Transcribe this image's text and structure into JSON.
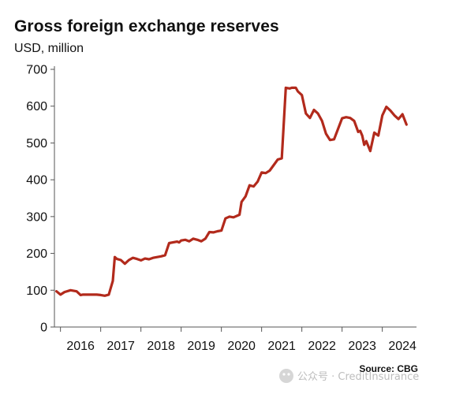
{
  "chart_data": {
    "type": "line",
    "title": "Gross foreign exchange reserves",
    "ylabel": "USD, million",
    "xlabel": "",
    "ylim": [
      0,
      700
    ],
    "yticks": [
      0,
      100,
      200,
      300,
      400,
      500,
      600,
      700
    ],
    "xlim": [
      2015.85,
      2024.85
    ],
    "xtick_labels": [
      "2016",
      "2017",
      "2018",
      "2019",
      "2020",
      "2021",
      "2022",
      "2023",
      "2024"
    ],
    "grid": false,
    "legend": "none",
    "series": [
      {
        "color": "#b22a1c",
        "x": [
          2015.9,
          2016.0,
          2016.1,
          2016.25,
          2016.4,
          2016.5,
          2016.55,
          2016.7,
          2016.9,
          2017.0,
          2017.1,
          2017.2,
          2017.3,
          2017.35,
          2017.4,
          2017.5,
          2017.6,
          2017.7,
          2017.8,
          2017.9,
          2018.0,
          2018.1,
          2018.2,
          2018.3,
          2018.5,
          2018.6,
          2018.7,
          2018.9,
          2018.95,
          2019.0,
          2019.1,
          2019.2,
          2019.3,
          2019.4,
          2019.5,
          2019.6,
          2019.7,
          2019.8,
          2019.9,
          2020.0,
          2020.1,
          2020.2,
          2020.3,
          2020.45,
          2020.5,
          2020.6,
          2020.7,
          2020.8,
          2020.9,
          2021.0,
          2021.1,
          2021.2,
          2021.3,
          2021.4,
          2021.5,
          2021.6,
          2021.7,
          2021.75,
          2021.85,
          2021.9,
          2022.0,
          2022.1,
          2022.2,
          2022.3,
          2022.4,
          2022.5,
          2022.6,
          2022.7,
          2022.8,
          2023.0,
          2023.1,
          2023.2,
          2023.3,
          2023.4,
          2023.45,
          2023.5,
          2023.55,
          2023.6,
          2023.7,
          2023.8,
          2023.9,
          2024.0,
          2024.1,
          2024.2,
          2024.3,
          2024.4,
          2024.5,
          2024.6
        ],
        "y": [
          97,
          88,
          95,
          100,
          97,
          87,
          88,
          88,
          88,
          87,
          85,
          88,
          125,
          190,
          185,
          182,
          172,
          182,
          188,
          185,
          181,
          186,
          184,
          188,
          192,
          195,
          228,
          232,
          230,
          235,
          237,
          233,
          240,
          237,
          233,
          240,
          258,
          257,
          260,
          262,
          295,
          300,
          298,
          305,
          340,
          355,
          385,
          382,
          395,
          420,
          418,
          425,
          440,
          455,
          458,
          650,
          648,
          650,
          650,
          640,
          630,
          580,
          568,
          590,
          580,
          560,
          525,
          508,
          510,
          567,
          570,
          568,
          560,
          530,
          533,
          520,
          495,
          505,
          478,
          528,
          520,
          575,
          598,
          588,
          575,
          565,
          578,
          550
        ]
      }
    ]
  },
  "source": "Source: CBG",
  "watermark": "公众号 · CreditInsurance"
}
